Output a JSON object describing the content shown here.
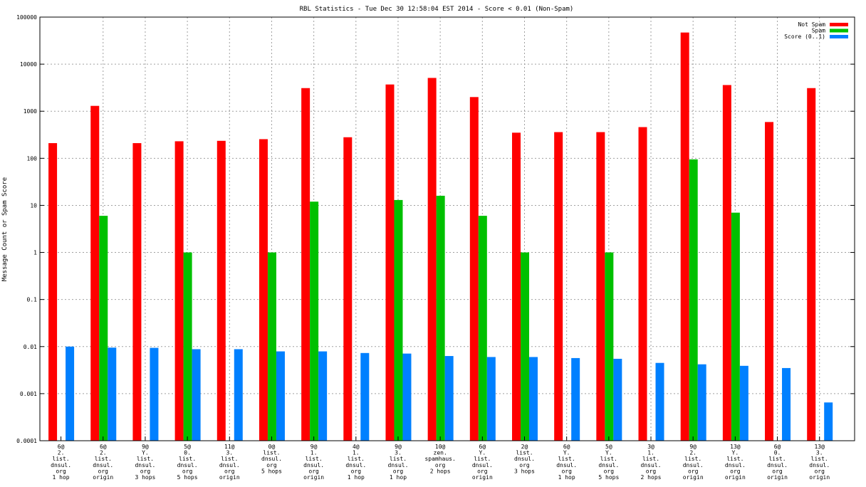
{
  "chart_data": {
    "type": "bar",
    "title": "RBL Statistics - Tue Dec 30 12:58:04 EST 2014 - Score < 0.01 (Non-Spam)",
    "ylabel": "Message Count or Spam Score",
    "xlabel": "",
    "yscale": "log",
    "ylim": [
      0.0001,
      100000
    ],
    "yticks": [
      "0.0001",
      "0.001",
      "0.01",
      "0.1",
      "1",
      "10",
      "100",
      "1000",
      "10000",
      "100000"
    ],
    "grid": true,
    "legend_position": "top-right",
    "categories": [
      [
        "6@",
        "2.",
        "list.",
        "dnsul.",
        "org",
        "1 hop"
      ],
      [
        "6@",
        "2.",
        "list.",
        "dnsul.",
        "org",
        "origin"
      ],
      [
        "9@",
        "Y.",
        "list.",
        "dnsul.",
        "org",
        "3 hops"
      ],
      [
        "5@",
        "0.",
        "list.",
        "dnsul.",
        "org",
        "5 hops"
      ],
      [
        "11@",
        "3.",
        "list.",
        "dnsul.",
        "org",
        "origin"
      ],
      [
        "0@",
        "list.",
        "dnsul.",
        "org",
        "5 hops"
      ],
      [
        "9@",
        "1.",
        "list.",
        "dnsul.",
        "org",
        "origin"
      ],
      [
        "4@",
        "1.",
        "list.",
        "dnsul.",
        "org",
        "1 hop"
      ],
      [
        "9@",
        "3.",
        "list.",
        "dnsul.",
        "org",
        "1 hop"
      ],
      [
        "10@",
        "zen.",
        "spamhaus.",
        "org",
        "2 hops"
      ],
      [
        "6@",
        "Y.",
        "list.",
        "dnsul.",
        "org",
        "origin"
      ],
      [
        "2@",
        "list.",
        "dnsul.",
        "org",
        "3 hops"
      ],
      [
        "6@",
        "Y.",
        "list.",
        "dnsul.",
        "org",
        "1 hop"
      ],
      [
        "5@",
        "Y.",
        "list.",
        "dnsul.",
        "org",
        "5 hops"
      ],
      [
        "3@",
        "1.",
        "list.",
        "dnsul.",
        "org",
        "2 hops"
      ],
      [
        "9@",
        "2.",
        "list.",
        "dnsul.",
        "org",
        "origin"
      ],
      [
        "13@",
        "Y.",
        "list.",
        "dnsul.",
        "org",
        "origin"
      ],
      [
        "6@",
        "0.",
        "list.",
        "dnsul.",
        "org",
        "origin"
      ],
      [
        "13@",
        "3.",
        "list.",
        "dnsul.",
        "org",
        "origin"
      ]
    ],
    "series": [
      {
        "name": "Not Spam",
        "color": "#ff0000",
        "values": [
          210,
          1300,
          210,
          230,
          235,
          255,
          3100,
          280,
          3700,
          5100,
          2000,
          350,
          360,
          360,
          460,
          47000,
          3600,
          590,
          3100
        ]
      },
      {
        "name": "Spam",
        "color": "#00c000",
        "values": [
          null,
          6,
          null,
          1,
          null,
          1,
          12,
          null,
          13,
          16,
          6,
          1,
          null,
          1,
          null,
          95,
          7,
          null,
          null
        ]
      },
      {
        "name": "Score (0..1)",
        "color": "#0080ff",
        "values": [
          0.01,
          0.0095,
          0.0094,
          0.0088,
          0.0088,
          0.0079,
          0.0079,
          0.0073,
          0.0071,
          0.0063,
          0.006,
          0.006,
          0.0057,
          0.0055,
          0.0045,
          0.0042,
          0.0039,
          0.0035,
          0.00065
        ]
      }
    ]
  }
}
